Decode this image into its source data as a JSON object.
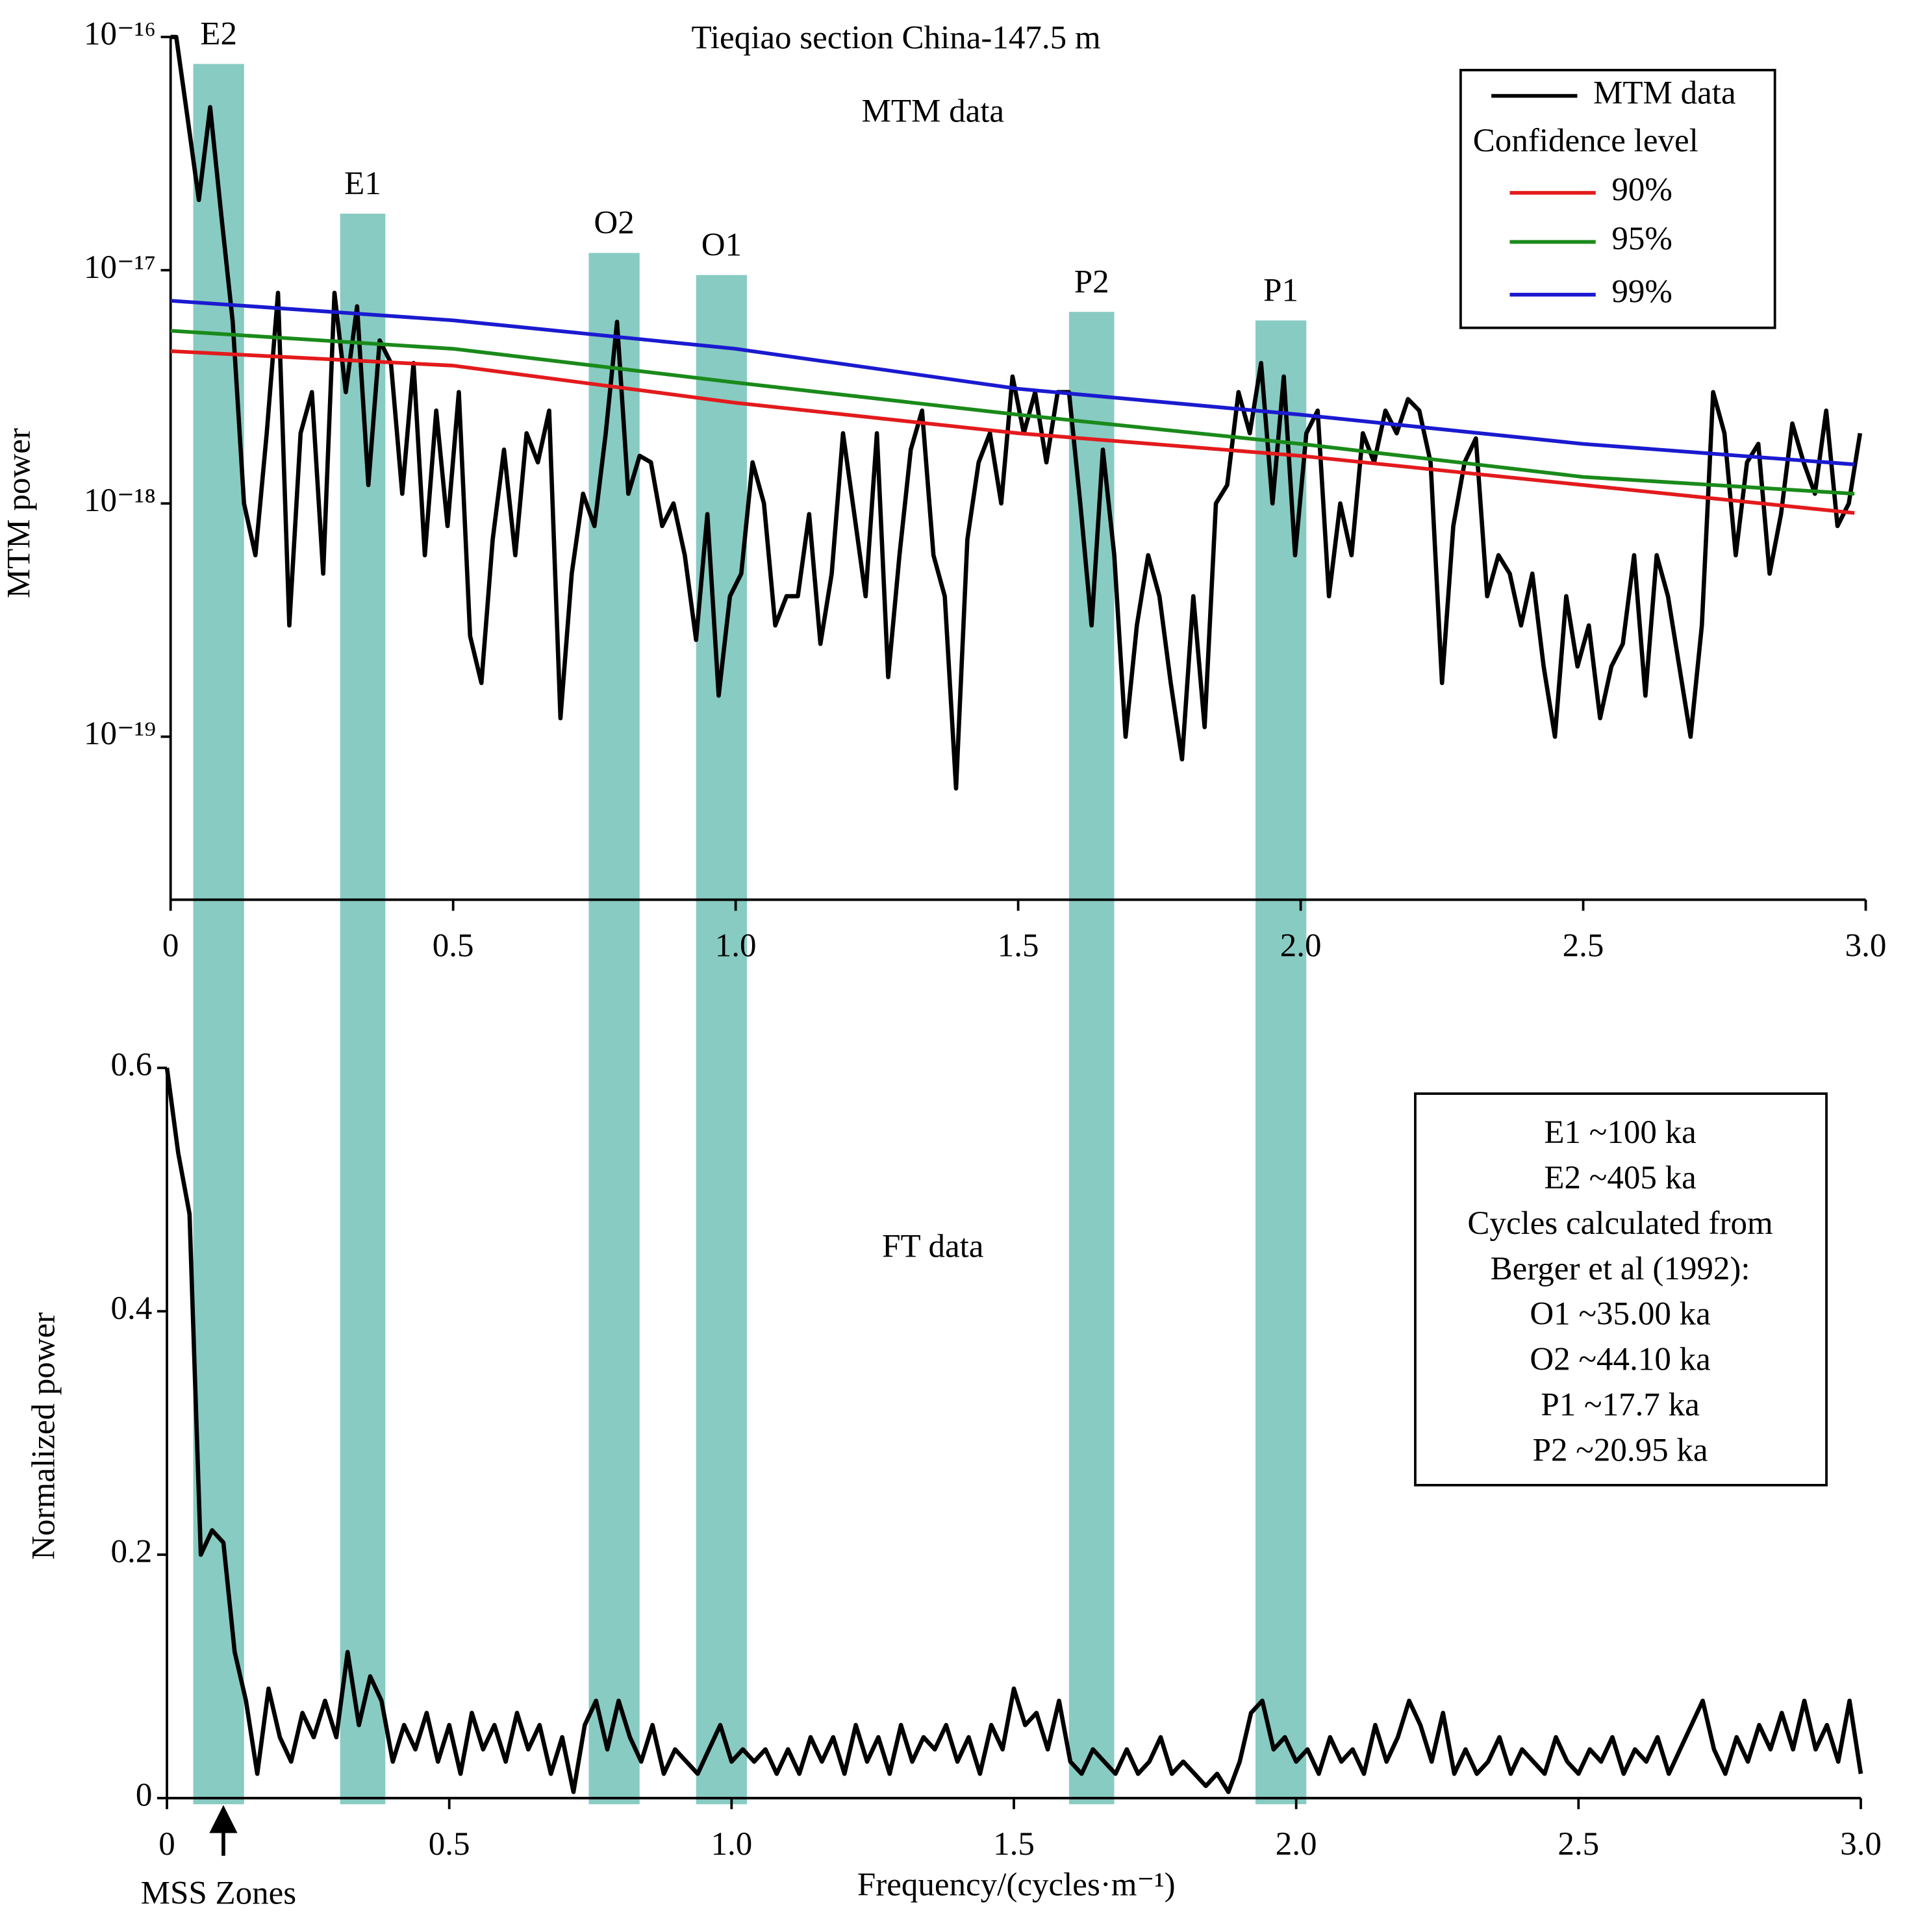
{
  "chart_data": [
    {
      "type": "line",
      "title": "Tieqiao section China-147.5 m",
      "subtitle": "MTM data",
      "y_label": "MTM power",
      "log_y": true,
      "ylim": [
        2e-20,
        1e-16
      ],
      "yticks": [
        {
          "value": 1e-16,
          "label": "10⁻¹⁶"
        },
        {
          "value": 1e-17,
          "label": "10⁻¹⁷"
        },
        {
          "value": 1e-18,
          "label": "10⁻¹⁸"
        },
        {
          "value": 1e-19,
          "label": "10⁻¹⁹"
        }
      ],
      "xlim": [
        0,
        3
      ],
      "xticks": [
        0,
        0.5,
        {
          "value": 1,
          "label": "1.0"
        },
        1.5,
        {
          "value": 2,
          "label": "2.0"
        },
        2.5,
        {
          "value": 3,
          "label": "3.0"
        }
      ],
      "legend_title": "Confidence level",
      "legend": "upper right",
      "bands": [
        {
          "label": "E2",
          "range": [
            0.04,
            0.13
          ]
        },
        {
          "label": "E1",
          "range": [
            0.3,
            0.38
          ]
        },
        {
          "label": "O2",
          "range": [
            0.74,
            0.83
          ]
        },
        {
          "label": "O1",
          "range": [
            0.93,
            1.02
          ]
        },
        {
          "label": "P2",
          "range": [
            1.59,
            1.67
          ]
        },
        {
          "label": "P1",
          "range": [
            1.92,
            2.01
          ]
        }
      ],
      "band_color": "#88cbc2",
      "series": [
        {
          "name": "MTM data",
          "color": "#000000",
          "x": [
            0,
            0.01,
            0.03,
            0.05,
            0.07,
            0.09,
            0.11,
            0.13,
            0.15,
            0.17,
            0.19,
            0.21,
            0.23,
            0.25,
            0.27,
            0.29,
            0.31,
            0.33,
            0.35,
            0.37,
            0.39,
            0.41,
            0.43,
            0.45,
            0.47,
            0.49,
            0.51,
            0.53,
            0.55,
            0.57,
            0.59,
            0.61,
            0.63,
            0.65,
            0.67,
            0.69,
            0.71,
            0.73,
            0.75,
            0.77,
            0.79,
            0.81,
            0.83,
            0.85,
            0.87,
            0.89,
            0.91,
            0.93,
            0.95,
            0.97,
            0.99,
            1.01,
            1.03,
            1.05,
            1.07,
            1.09,
            1.11,
            1.13,
            1.15,
            1.17,
            1.19,
            1.21,
            1.23,
            1.25,
            1.27,
            1.29,
            1.31,
            1.33,
            1.35,
            1.37,
            1.39,
            1.41,
            1.43,
            1.45,
            1.47,
            1.49,
            1.51,
            1.53,
            1.55,
            1.57,
            1.59,
            1.61,
            1.63,
            1.65,
            1.67,
            1.69,
            1.71,
            1.73,
            1.75,
            1.77,
            1.79,
            1.81,
            1.83,
            1.85,
            1.87,
            1.89,
            1.91,
            1.93,
            1.95,
            1.97,
            1.99,
            2.01,
            2.03,
            2.05,
            2.07,
            2.09,
            2.11,
            2.13,
            2.15,
            2.17,
            2.19,
            2.21,
            2.23,
            2.25,
            2.27,
            2.29,
            2.31,
            2.33,
            2.35,
            2.37,
            2.39,
            2.41,
            2.43,
            2.45,
            2.47,
            2.49,
            2.51,
            2.53,
            2.55,
            2.57,
            2.59,
            2.61,
            2.63,
            2.65,
            2.67,
            2.69,
            2.71,
            2.73,
            2.75,
            2.77,
            2.79,
            2.81,
            2.83,
            2.85,
            2.87,
            2.89,
            2.91,
            2.93,
            2.95,
            2.97,
            2.99
          ],
          "values": [
            1e-16,
            1e-16,
            4.5e-17,
            2e-17,
            5e-17,
            1.7e-17,
            6e-18,
            1e-18,
            6e-19,
            2e-18,
            8e-18,
            3e-19,
            2e-18,
            3e-18,
            5e-19,
            8e-18,
            3e-18,
            7e-18,
            1.2e-18,
            5e-18,
            4e-18,
            1.1e-18,
            4e-18,
            6e-19,
            2.5e-18,
            8e-19,
            3e-18,
            2.7e-19,
            1.7e-19,
            7e-19,
            1.7e-18,
            6e-19,
            2e-18,
            1.5e-18,
            2.5e-18,
            1.2e-19,
            5e-19,
            1.1e-18,
            8e-19,
            2e-18,
            6e-18,
            1.1e-18,
            1.6e-18,
            1.5e-18,
            8e-19,
            1e-18,
            6e-19,
            2.6e-19,
            9e-19,
            1.5e-19,
            4e-19,
            5e-19,
            1.5e-18,
            1e-18,
            3e-19,
            4e-19,
            4e-19,
            9e-19,
            2.5e-19,
            5e-19,
            2e-18,
            9e-19,
            4e-19,
            2e-18,
            1.8e-19,
            6e-19,
            1.7e-18,
            2.5e-18,
            6e-19,
            4e-19,
            6e-20,
            7e-19,
            1.5e-18,
            2e-18,
            1e-18,
            3.5e-18,
            2e-18,
            3e-18,
            1.5e-18,
            3e-18,
            3e-18,
            1e-18,
            3e-19,
            1.7e-18,
            6e-19,
            1e-19,
            3e-19,
            6e-19,
            4e-19,
            1.7e-19,
            8e-20,
            4e-19,
            1.1e-19,
            1e-18,
            1.2e-18,
            3e-18,
            2e-18,
            4e-18,
            1e-18,
            3.5e-18,
            6e-19,
            2e-18,
            2.5e-18,
            4e-19,
            1e-18,
            6e-19,
            2e-18,
            1.5e-18,
            2.5e-18,
            2e-18,
            2.8e-18,
            2.5e-18,
            1.5e-18,
            1.7e-19,
            8e-19,
            1.5e-18,
            1.9e-18,
            4e-19,
            6e-19,
            5e-19,
            3e-19,
            5e-19,
            2e-19,
            1e-19,
            4e-19,
            2e-19,
            3e-19,
            1.2e-19,
            2e-19,
            2.5e-19,
            6e-19,
            1.5e-19,
            6e-19,
            4e-19,
            2e-19,
            1e-19,
            3e-19,
            3e-18,
            2e-18,
            6e-19,
            1.5e-18,
            1.8e-18,
            5e-19,
            9e-19,
            2.2e-18,
            1.5e-18,
            1.1e-18,
            2.5e-18,
            8e-19,
            1e-18,
            2e-18
          ]
        },
        {
          "name": "90%",
          "color": "#e31a1c",
          "x": [
            0,
            0.5,
            1,
            1.5,
            2,
            2.5,
            2.98
          ],
          "values": [
            4.5e-18,
            3.9e-18,
            2.7e-18,
            2e-18,
            1.6e-18,
            1.2e-18,
            9.1e-19
          ]
        },
        {
          "name": "95%",
          "color": "#1a8a1a",
          "x": [
            0,
            0.5,
            1,
            1.5,
            2,
            2.5,
            2.98
          ],
          "values": [
            5.5e-18,
            4.6e-18,
            3.3e-18,
            2.4e-18,
            1.8e-18,
            1.3e-18,
            1.1e-18
          ]
        },
        {
          "name": "99%",
          "color": "#1a1ad0",
          "x": [
            0,
            0.5,
            1,
            1.5,
            2,
            2.5,
            2.98
          ],
          "values": [
            7.4e-18,
            6.1e-18,
            4.6e-18,
            3.1e-18,
            2.4e-18,
            1.8e-18,
            1.47e-18
          ]
        }
      ]
    },
    {
      "type": "line",
      "title": "FT data",
      "y_label": "Normalized power",
      "x_label": "Frequency/(cycles·m⁻¹)",
      "ylim": [
        0,
        0.6
      ],
      "yticks": [
        0,
        0.2,
        0.4,
        0.6
      ],
      "xlim": [
        0,
        3
      ],
      "xticks": [
        0,
        0.5,
        {
          "value": 1,
          "label": "1.0"
        },
        1.5,
        {
          "value": 2,
          "label": "2.0"
        },
        2.5,
        {
          "value": 3,
          "label": "3.0"
        }
      ],
      "annotation": {
        "text": "MSS Zones",
        "x": 0.1
      },
      "notes": [
        "E1 ~100 ka",
        "E2 ~405 ka",
        "Cycles calculated from",
        "Berger et al (1992):",
        "O1 ~35.00 ka",
        "O2 ~44.10 ka",
        "P1 ~17.7 ka",
        "P2 ~20.95 ka"
      ],
      "series": [
        {
          "color": "#000000",
          "x": [
            0,
            0.02,
            0.04,
            0.06,
            0.08,
            0.1,
            0.12,
            0.14,
            0.16,
            0.18,
            0.2,
            0.22,
            0.24,
            0.26,
            0.28,
            0.3,
            0.32,
            0.34,
            0.36,
            0.38,
            0.4,
            0.42,
            0.44,
            0.46,
            0.48,
            0.5,
            0.52,
            0.54,
            0.56,
            0.58,
            0.6,
            0.62,
            0.64,
            0.66,
            0.68,
            0.7,
            0.72,
            0.74,
            0.76,
            0.78,
            0.8,
            0.82,
            0.84,
            0.86,
            0.88,
            0.9,
            0.92,
            0.94,
            0.96,
            0.98,
            1,
            1.02,
            1.04,
            1.06,
            1.08,
            1.1,
            1.12,
            1.14,
            1.16,
            1.18,
            1.2,
            1.22,
            1.24,
            1.26,
            1.28,
            1.3,
            1.32,
            1.34,
            1.36,
            1.38,
            1.4,
            1.42,
            1.44,
            1.46,
            1.48,
            1.5,
            1.52,
            1.54,
            1.56,
            1.58,
            1.6,
            1.62,
            1.64,
            1.66,
            1.68,
            1.7,
            1.72,
            1.74,
            1.76,
            1.78,
            1.8,
            1.82,
            1.84,
            1.86,
            1.88,
            1.9,
            1.92,
            1.94,
            1.96,
            1.98,
            2,
            2.02,
            2.04,
            2.06,
            2.08,
            2.1,
            2.12,
            2.14,
            2.16,
            2.18,
            2.2,
            2.22,
            2.24,
            2.26,
            2.28,
            2.3,
            2.32,
            2.34,
            2.36,
            2.38,
            2.4,
            2.42,
            2.44,
            2.46,
            2.48,
            2.5,
            2.52,
            2.54,
            2.56,
            2.58,
            2.6,
            2.62,
            2.64,
            2.66,
            2.68,
            2.7,
            2.72,
            2.74,
            2.76,
            2.78,
            2.8,
            2.82,
            2.84,
            2.86,
            2.88,
            2.9,
            2.92,
            2.94,
            2.96,
            2.98,
            3
          ],
          "values": [
            0.6,
            0.53,
            0.48,
            0.2,
            0.22,
            0.21,
            0.12,
            0.08,
            0.02,
            0.09,
            0.05,
            0.03,
            0.07,
            0.05,
            0.08,
            0.05,
            0.12,
            0.06,
            0.1,
            0.08,
            0.03,
            0.06,
            0.04,
            0.07,
            0.03,
            0.06,
            0.02,
            0.07,
            0.04,
            0.06,
            0.03,
            0.07,
            0.04,
            0.06,
            0.02,
            0.05,
            0.005,
            0.06,
            0.08,
            0.04,
            0.08,
            0.05,
            0.03,
            0.06,
            0.02,
            0.04,
            0.03,
            0.02,
            0.04,
            0.06,
            0.03,
            0.04,
            0.03,
            0.04,
            0.02,
            0.04,
            0.02,
            0.05,
            0.03,
            0.05,
            0.02,
            0.06,
            0.03,
            0.05,
            0.02,
            0.06,
            0.03,
            0.05,
            0.04,
            0.06,
            0.03,
            0.05,
            0.02,
            0.06,
            0.04,
            0.09,
            0.06,
            0.07,
            0.04,
            0.08,
            0.03,
            0.02,
            0.04,
            0.03,
            0.02,
            0.04,
            0.02,
            0.03,
            0.05,
            0.02,
            0.03,
            0.02,
            0.01,
            0.02,
            0.005,
            0.03,
            0.07,
            0.08,
            0.04,
            0.05,
            0.03,
            0.04,
            0.02,
            0.05,
            0.03,
            0.04,
            0.02,
            0.06,
            0.03,
            0.05,
            0.08,
            0.06,
            0.03,
            0.07,
            0.02,
            0.04,
            0.02,
            0.03,
            0.05,
            0.02,
            0.04,
            0.03,
            0.02,
            0.05,
            0.03,
            0.02,
            0.04,
            0.03,
            0.05,
            0.02,
            0.04,
            0.03,
            0.05,
            0.02,
            0.04,
            0.06,
            0.08,
            0.04,
            0.02,
            0.05,
            0.03,
            0.06,
            0.04,
            0.07,
            0.04,
            0.08,
            0.04,
            0.06,
            0.03,
            0.08,
            0.02
          ]
        }
      ]
    }
  ]
}
